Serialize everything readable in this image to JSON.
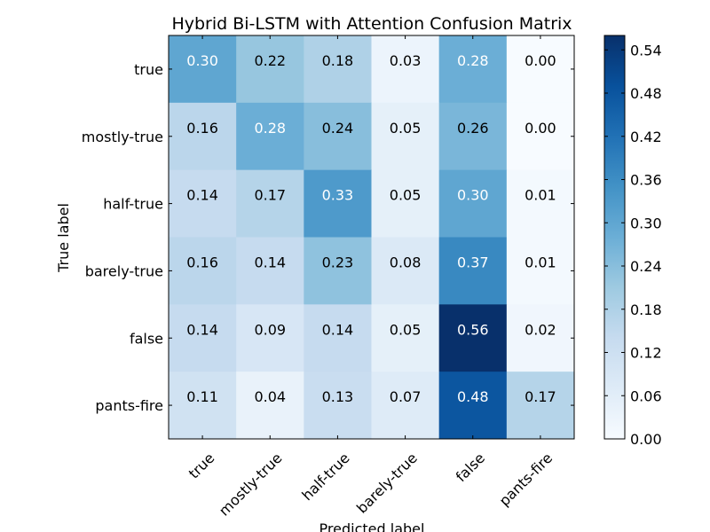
{
  "chart_data": {
    "type": "heatmap",
    "title": "Hybrid Bi-LSTM with Attention Confusion Matrix",
    "xlabel": "Predicted label",
    "ylabel": "True label",
    "x_categories": [
      "true",
      "mostly-true",
      "half-true",
      "barely-true",
      "false",
      "pants-fire"
    ],
    "y_categories": [
      "true",
      "mostly-true",
      "half-true",
      "barely-true",
      "false",
      "pants-fire"
    ],
    "values": [
      [
        0.3,
        0.22,
        0.18,
        0.03,
        0.28,
        0.0
      ],
      [
        0.16,
        0.28,
        0.24,
        0.05,
        0.26,
        0.0
      ],
      [
        0.14,
        0.17,
        0.33,
        0.05,
        0.3,
        0.01
      ],
      [
        0.16,
        0.14,
        0.23,
        0.08,
        0.37,
        0.01
      ],
      [
        0.14,
        0.09,
        0.14,
        0.05,
        0.56,
        0.02
      ],
      [
        0.11,
        0.04,
        0.13,
        0.07,
        0.48,
        0.17
      ]
    ],
    "colormap": "Blues",
    "colorbar": {
      "range": [
        0.0,
        0.56
      ],
      "ticks": [
        "0.00",
        "0.06",
        "0.12",
        "0.18",
        "0.24",
        "0.30",
        "0.36",
        "0.42",
        "0.48",
        "0.54"
      ]
    },
    "text_color_threshold": 0.28,
    "colors": {
      "light_text": "#ffffff",
      "dark_text": "#000000",
      "axis": "#000000"
    }
  }
}
